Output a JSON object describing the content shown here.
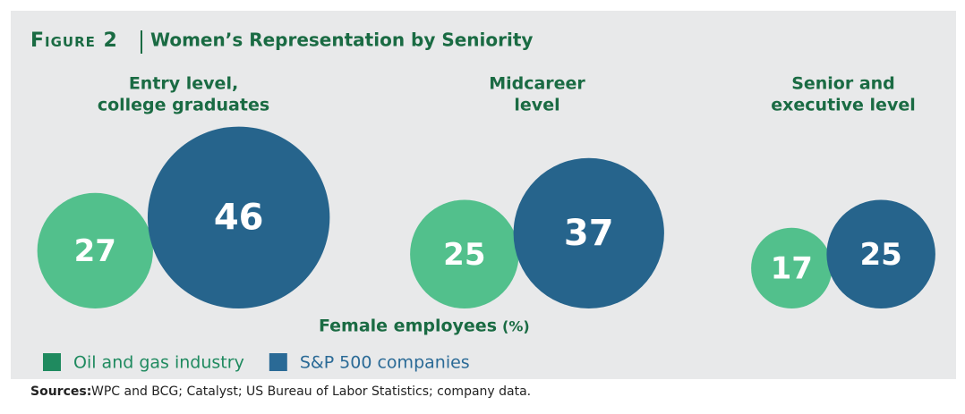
{
  "chart_data": {
    "type": "bubble",
    "figure_label": "Figure 2",
    "title": "Women’s Representation by Seniority",
    "categories": [
      [
        "Entry level,",
        "college graduates"
      ],
      [
        "Midcareer",
        "level"
      ],
      [
        "Senior and",
        "executive level"
      ]
    ],
    "series": [
      {
        "name": "Oil and gas industry",
        "color": "#52c08c",
        "legend_color": "#1f8a5f",
        "values": [
          27,
          25,
          17
        ]
      },
      {
        "name": "S&P 500 companies",
        "color": "#26648c",
        "legend_color": "#2a6a96",
        "values": [
          46,
          37,
          25
        ]
      }
    ],
    "axis_label": "Female employees",
    "axis_unit": "(%)",
    "source_label": "Sources:",
    "source": "WPC and BCG; Catalyst; US Bureau of Labor Statistics; company data."
  }
}
